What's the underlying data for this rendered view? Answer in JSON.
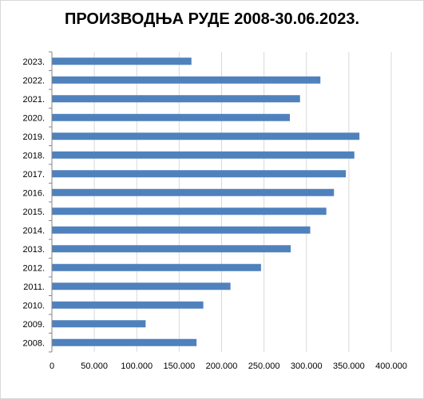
{
  "chart_data": {
    "type": "bar",
    "orientation": "horizontal",
    "title": "ПРОИЗВОДЊА РУДЕ 2008-30.06.2023.",
    "categories": [
      "2008.",
      "2009.",
      "2010.",
      "2011.",
      "2012.",
      "2013.",
      "2014.",
      "2015.",
      "2016.",
      "2017.",
      "2018.",
      "2019.",
      "2020.",
      "2021.",
      "2022.",
      "2023."
    ],
    "values": [
      170000,
      110000,
      178000,
      210000,
      246000,
      281000,
      304000,
      323000,
      332000,
      346000,
      356000,
      362000,
      280000,
      292000,
      316000,
      164000
    ],
    "xlim": [
      0,
      400000
    ],
    "x_ticks": [
      "0",
      "50.000",
      "100.000",
      "150.000",
      "200.000",
      "250.000",
      "300.000",
      "350.000",
      "400.000"
    ],
    "x_tick_values": [
      0,
      50000,
      100000,
      150000,
      200000,
      250000,
      300000,
      350000,
      400000
    ],
    "grid": true,
    "colors": {
      "bar": "#4F81BD",
      "grid": "#d9d9d9",
      "axis": "#868686"
    }
  }
}
